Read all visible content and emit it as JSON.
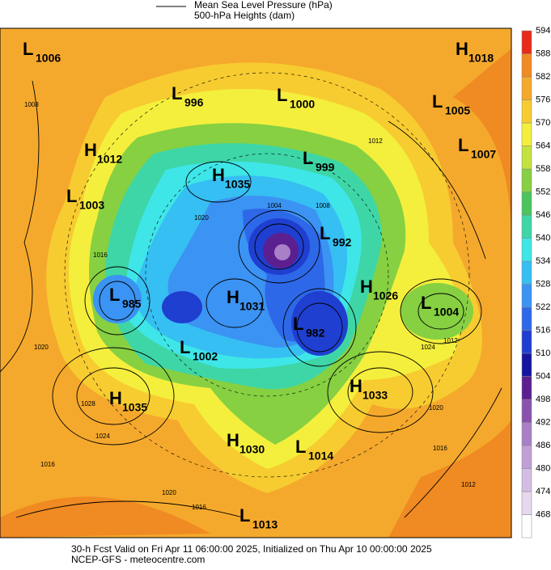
{
  "legend": {
    "lines": [
      "Mean Sea Level Pressure (hPa)",
      "500-hPa Heights (dam)"
    ]
  },
  "colorbar": {
    "levels": [
      468,
      474,
      480,
      486,
      492,
      498,
      504,
      510,
      516,
      522,
      528,
      534,
      540,
      546,
      552,
      558,
      564,
      570,
      576,
      582,
      588,
      594
    ],
    "colors": [
      "#ffffff",
      "#e6d8ee",
      "#d4bde3",
      "#c09fd6",
      "#a97fc8",
      "#8a52ae",
      "#5c1f90",
      "#1515a0",
      "#1f3fd0",
      "#2d68e8",
      "#3b93f3",
      "#36bff2",
      "#3ee6e8",
      "#3ed6a6",
      "#4cc45c",
      "#86d042",
      "#c4e23e",
      "#f4ef3c",
      "#f7cc30",
      "#f5a92c",
      "#f08a22",
      "#e82a1a"
    ]
  },
  "centers": [
    {
      "type": "L",
      "value": 1006
    },
    {
      "type": "H",
      "value": 1018
    },
    {
      "type": "L",
      "value": 996
    },
    {
      "type": "L",
      "value": 1000
    },
    {
      "type": "L",
      "value": 1005
    },
    {
      "type": "L",
      "value": 1007
    },
    {
      "type": "H",
      "value": 1012
    },
    {
      "type": "L",
      "value": 999
    },
    {
      "type": "H",
      "value": 1035
    },
    {
      "type": "L",
      "value": 1003
    },
    {
      "type": "L",
      "value": 992
    },
    {
      "type": "H",
      "value": 1026
    },
    {
      "type": "L",
      "value": 1004
    },
    {
      "type": "L",
      "value": 985
    },
    {
      "type": "H",
      "value": 1031
    },
    {
      "type": "L",
      "value": 982
    },
    {
      "type": "L",
      "value": 1002
    },
    {
      "type": "H",
      "value": 1033
    },
    {
      "type": "H",
      "value": 1035
    },
    {
      "type": "H",
      "value": 1030
    },
    {
      "type": "L",
      "value": 1014
    },
    {
      "type": "L",
      "value": 1013
    }
  ],
  "isobar_labels": [
    1008,
    1020,
    1028,
    1024,
    1016,
    1020,
    1016,
    1012,
    1016,
    1020,
    1024,
    1012,
    1016,
    1012,
    1020,
    1008,
    1004
  ],
  "footer": [
    "30-h Fcst Valid on Fri Apr 11 06:00:00 2025, Initialized on Thu Apr 10 00:00:00 2025",
    "NCEP-GFS - meteocentre.com"
  ]
}
